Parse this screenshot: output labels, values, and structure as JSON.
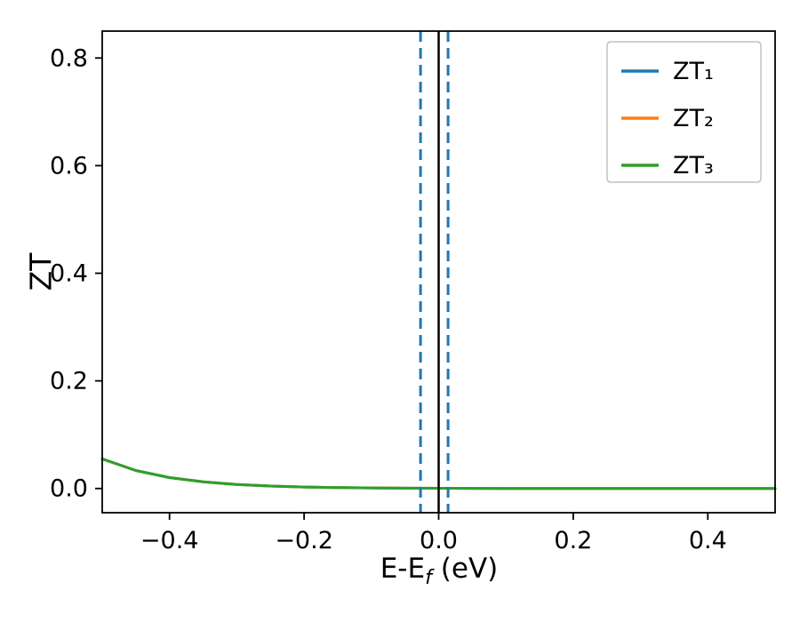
{
  "chart_data": {
    "type": "line",
    "title": "",
    "xlabel": "E-E_f (eV)",
    "xlabel_parts": {
      "main": "E-E",
      "sub": "f",
      "suffix": " (eV)"
    },
    "ylabel": "ZT",
    "xlim": [
      -0.5,
      0.5
    ],
    "ylim": [
      -0.045,
      0.85
    ],
    "grid": false,
    "legend_position": "upper right",
    "xticks": [
      {
        "value": -0.4,
        "label": "−0.4"
      },
      {
        "value": -0.2,
        "label": "−0.2"
      },
      {
        "value": 0.0,
        "label": "0.0"
      },
      {
        "value": 0.2,
        "label": "0.2"
      },
      {
        "value": 0.4,
        "label": "0.4"
      }
    ],
    "yticks": [
      {
        "value": 0.0,
        "label": "0.0"
      },
      {
        "value": 0.2,
        "label": "0.2"
      },
      {
        "value": 0.4,
        "label": "0.4"
      },
      {
        "value": 0.6,
        "label": "0.6"
      },
      {
        "value": 0.8,
        "label": "0.8"
      }
    ],
    "x": [
      -0.5,
      -0.45,
      -0.4,
      -0.35,
      -0.3,
      -0.25,
      -0.2,
      -0.15,
      -0.1,
      -0.05,
      0.0,
      0.05,
      0.1,
      0.15,
      0.2,
      0.25,
      0.3,
      0.35,
      0.4,
      0.45,
      0.5
    ],
    "series": [
      {
        "name": "ZT₁",
        "color": "#1f77b4",
        "values": [
          0.055,
          0.0334,
          0.0202,
          0.0123,
          0.0074,
          0.0045,
          0.0027,
          0.0017,
          0.001,
          0.0006,
          0.0004,
          0.0002,
          0.0001,
          0.0001,
          0.0,
          0.0,
          0.0,
          0.0,
          0.0,
          0.0,
          0.0
        ]
      },
      {
        "name": "ZT₂",
        "color": "#ff7f0e",
        "values": [
          0.055,
          0.0334,
          0.0202,
          0.0123,
          0.0074,
          0.0045,
          0.0027,
          0.0017,
          0.001,
          0.0006,
          0.0004,
          0.0002,
          0.0001,
          0.0001,
          0.0,
          0.0,
          0.0,
          0.0,
          0.0,
          0.0,
          0.0
        ]
      },
      {
        "name": "ZT₃",
        "color": "#2ca02c",
        "values": [
          0.055,
          0.0334,
          0.0202,
          0.0123,
          0.0074,
          0.0045,
          0.0027,
          0.0017,
          0.001,
          0.0006,
          0.0004,
          0.0002,
          0.0001,
          0.0001,
          0.0,
          0.0,
          0.0,
          0.0,
          0.0,
          0.0,
          0.0
        ]
      }
    ],
    "vlines": [
      {
        "x": -0.027,
        "style": "dashed",
        "color": "#1f77b4"
      },
      {
        "x": 0.0,
        "style": "solid",
        "color": "#000000"
      },
      {
        "x": 0.014,
        "style": "dashed",
        "color": "#1f77b4"
      }
    ]
  }
}
